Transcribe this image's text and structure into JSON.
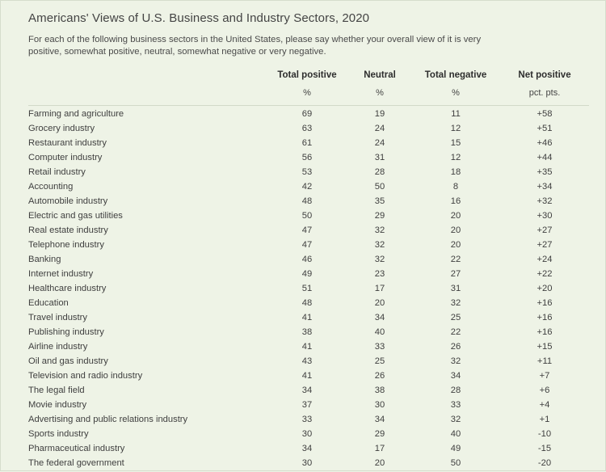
{
  "title": "Americans' Views of U.S. Business and Industry Sectors, 2020",
  "subtitle": "For each of the following business sectors in the United States, please say whether your overall view of it is very positive, somewhat positive, neutral, somewhat negative or very negative.",
  "columns": [
    {
      "header": "Total positive",
      "unit": "%"
    },
    {
      "header": "Neutral",
      "unit": "%"
    },
    {
      "header": "Total negative",
      "unit": "%"
    },
    {
      "header": "Net positive",
      "unit": "pct. pts."
    }
  ],
  "rows": [
    {
      "sector": "Farming and agriculture",
      "positive": "69",
      "neutral": "19",
      "negative": "11",
      "net": "+58"
    },
    {
      "sector": "Grocery industry",
      "positive": "63",
      "neutral": "24",
      "negative": "12",
      "net": "+51"
    },
    {
      "sector": "Restaurant industry",
      "positive": "61",
      "neutral": "24",
      "negative": "15",
      "net": "+46"
    },
    {
      "sector": "Computer industry",
      "positive": "56",
      "neutral": "31",
      "negative": "12",
      "net": "+44"
    },
    {
      "sector": "Retail industry",
      "positive": "53",
      "neutral": "28",
      "negative": "18",
      "net": "+35"
    },
    {
      "sector": "Accounting",
      "positive": "42",
      "neutral": "50",
      "negative": "8",
      "net": "+34"
    },
    {
      "sector": "Automobile industry",
      "positive": "48",
      "neutral": "35",
      "negative": "16",
      "net": "+32"
    },
    {
      "sector": "Electric and gas utilities",
      "positive": "50",
      "neutral": "29",
      "negative": "20",
      "net": "+30"
    },
    {
      "sector": "Real estate industry",
      "positive": "47",
      "neutral": "32",
      "negative": "20",
      "net": "+27"
    },
    {
      "sector": "Telephone industry",
      "positive": "47",
      "neutral": "32",
      "negative": "20",
      "net": "+27"
    },
    {
      "sector": "Banking",
      "positive": "46",
      "neutral": "32",
      "negative": "22",
      "net": "+24"
    },
    {
      "sector": "Internet industry",
      "positive": "49",
      "neutral": "23",
      "negative": "27",
      "net": "+22"
    },
    {
      "sector": "Healthcare industry",
      "positive": "51",
      "neutral": "17",
      "negative": "31",
      "net": "+20"
    },
    {
      "sector": "Education",
      "positive": "48",
      "neutral": "20",
      "negative": "32",
      "net": "+16"
    },
    {
      "sector": "Travel industry",
      "positive": "41",
      "neutral": "34",
      "negative": "25",
      "net": "+16"
    },
    {
      "sector": "Publishing industry",
      "positive": "38",
      "neutral": "40",
      "negative": "22",
      "net": "+16"
    },
    {
      "sector": "Airline industry",
      "positive": "41",
      "neutral": "33",
      "negative": "26",
      "net": "+15"
    },
    {
      "sector": "Oil and gas industry",
      "positive": "43",
      "neutral": "25",
      "negative": "32",
      "net": "+11"
    },
    {
      "sector": "Television and radio industry",
      "positive": "41",
      "neutral": "26",
      "negative": "34",
      "net": "+7"
    },
    {
      "sector": "The legal field",
      "positive": "34",
      "neutral": "38",
      "negative": "28",
      "net": "+6"
    },
    {
      "sector": "Movie industry",
      "positive": "37",
      "neutral": "30",
      "negative": "33",
      "net": "+4"
    },
    {
      "sector": "Advertising and public relations industry",
      "positive": "33",
      "neutral": "34",
      "negative": "32",
      "net": "+1"
    },
    {
      "sector": "Sports industry",
      "positive": "30",
      "neutral": "29",
      "negative": "40",
      "net": "-10"
    },
    {
      "sector": "Pharmaceutical industry",
      "positive": "34",
      "neutral": "17",
      "negative": "49",
      "net": "-15"
    },
    {
      "sector": "The federal government",
      "positive": "30",
      "neutral": "20",
      "negative": "50",
      "net": "-20"
    }
  ]
}
